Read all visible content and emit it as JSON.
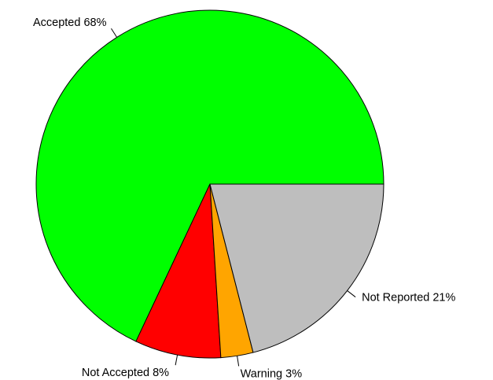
{
  "chart_data": {
    "type": "pie",
    "title": "",
    "slices": [
      {
        "label": "Accepted 68%",
        "value": 68,
        "color": "#00FF00"
      },
      {
        "label": "Not Accepted 8%",
        "value": 8,
        "color": "#FF0000"
      },
      {
        "label": "Warning 3%",
        "value": 3,
        "color": "#FFA500"
      },
      {
        "label": "Not Reported 21%",
        "value": 21,
        "color": "#BEBEBE"
      }
    ],
    "start_angle_deg": 0,
    "direction": "counterclockwise"
  }
}
